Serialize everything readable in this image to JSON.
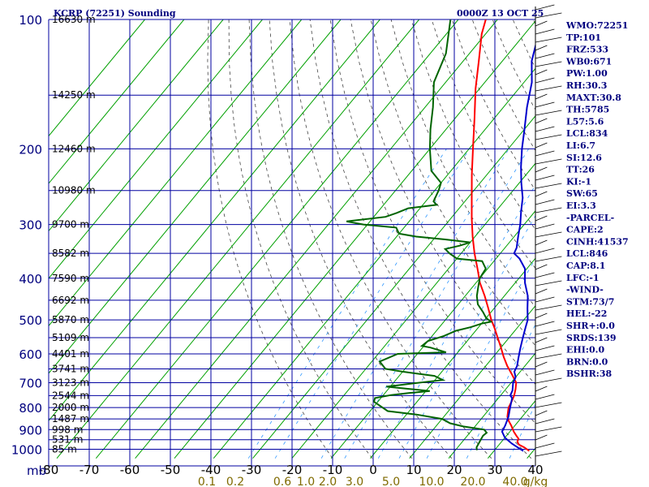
{
  "header": {
    "title": "KCRP (72251) Sounding",
    "datetime": "0000Z 13 OCT 25"
  },
  "indices": [
    "WMO:72251",
    "TP:101",
    "FRZ:533",
    "WB0:671",
    "PW:1.00",
    "RH:30.3",
    "MAXT:30.8",
    "TH:5785",
    "L57:5.6",
    "LCL:834",
    "LI:6.7",
    "SI:12.6",
    "TT:26",
    "KI:-1",
    "SW:65",
    "EI:3.3",
    "-PARCEL-",
    "CAPE:2",
    "CINH:41537",
    "LCL:846",
    "CAP:8.1",
    "LFC:-1",
    "-WIND-",
    "STM:73/7",
    "HEL:-22",
    "SHR+:0.0",
    "SRDS:139",
    "EHI:0.0",
    "BRN:0.0",
    "BSHR:38"
  ],
  "chart_data": {
    "type": "line",
    "title": "KCRP (72251) Sounding",
    "xlabel": "",
    "ylabel": "mb",
    "x_axis": {
      "label": "",
      "ticks": [
        -80,
        -70,
        -60,
        -50,
        -40,
        -30,
        -20,
        -10,
        0,
        10,
        20,
        30,
        40
      ],
      "range": [
        -80,
        40
      ]
    },
    "y_axis": {
      "label": "mb",
      "scale": "log",
      "ticks": [
        100,
        200,
        300,
        400,
        500,
        600,
        700,
        800,
        900,
        1000
      ],
      "range": [
        100,
        1050
      ]
    },
    "mixing_ratio_labels": [
      "0.1",
      "0.2",
      "0.6",
      "1.0",
      "2.0",
      "3.0",
      "5.0",
      "10.0",
      "20.0",
      "40.0",
      "g/kg"
    ],
    "heights": [
      {
        "p": 100,
        "label": "16630 m"
      },
      {
        "p": 150,
        "label": "14250 m"
      },
      {
        "p": 200,
        "label": "12460 m"
      },
      {
        "p": 250,
        "label": "10980 m"
      },
      {
        "p": 300,
        "label": "9700 m"
      },
      {
        "p": 350,
        "label": "8582 m"
      },
      {
        "p": 400,
        "label": "7590 m"
      },
      {
        "p": 450,
        "label": "6692 m"
      },
      {
        "p": 500,
        "label": "5870 m"
      },
      {
        "p": 550,
        "label": "5109 m"
      },
      {
        "p": 600,
        "label": "4401 m"
      },
      {
        "p": 650,
        "label": "3741 m"
      },
      {
        "p": 700,
        "label": "3123 m"
      },
      {
        "p": 750,
        "label": "2544 m"
      },
      {
        "p": 800,
        "label": "2000 m"
      },
      {
        "p": 850,
        "label": "1487 m"
      },
      {
        "p": 900,
        "label": "998 m"
      },
      {
        "p": 950,
        "label": "531 m"
      },
      {
        "p": 1000,
        "label": "85 m"
      }
    ],
    "series": [
      {
        "values": [
          [
            1009,
            29
          ],
          [
            990,
            27
          ],
          [
            975,
            25
          ],
          [
            960,
            24
          ],
          [
            945,
            23.7
          ],
          [
            930,
            22.5
          ],
          [
            910,
            21
          ],
          [
            880,
            19
          ],
          [
            860,
            17.5
          ],
          [
            840,
            16.2
          ],
          [
            820,
            15.4
          ],
          [
            800,
            14.6
          ],
          [
            775,
            14.1
          ],
          [
            750,
            13.5
          ],
          [
            725,
            12.5
          ],
          [
            700,
            11.3
          ],
          [
            670,
            8.5
          ],
          [
            640,
            5.5
          ],
          [
            610,
            2.7
          ],
          [
            580,
            0
          ],
          [
            550,
            -2.9
          ],
          [
            520,
            -6
          ],
          [
            500,
            -8.3
          ],
          [
            470,
            -11.5
          ],
          [
            440,
            -15
          ],
          [
            410,
            -19
          ],
          [
            380,
            -22.6
          ],
          [
            350,
            -26.6
          ],
          [
            320,
            -30.6
          ],
          [
            290,
            -34.7
          ],
          [
            260,
            -39
          ],
          [
            230,
            -43.8
          ],
          [
            200,
            -49
          ],
          [
            170,
            -55
          ],
          [
            145,
            -61
          ],
          [
            125,
            -66
          ],
          [
            108,
            -71
          ],
          [
            100,
            -73
          ]
        ]
      },
      {
        "values": [
          [
            1009,
            27.5
          ],
          [
            970,
            23
          ],
          [
            940,
            20
          ],
          [
            910,
            18
          ],
          [
            880,
            17.5
          ],
          [
            860,
            17
          ],
          [
            840,
            16.5
          ],
          [
            800,
            15
          ],
          [
            760,
            13.5
          ],
          [
            750,
            12.5
          ],
          [
            730,
            12
          ],
          [
            700,
            10.5
          ],
          [
            680,
            10
          ],
          [
            660,
            8.5
          ],
          [
            640,
            8
          ],
          [
            620,
            7
          ],
          [
            600,
            6
          ],
          [
            580,
            5
          ],
          [
            550,
            3.5
          ],
          [
            520,
            2
          ],
          [
            500,
            1
          ],
          [
            470,
            -1.5
          ],
          [
            440,
            -4
          ],
          [
            410,
            -7.5
          ],
          [
            380,
            -10.5
          ],
          [
            360,
            -14
          ],
          [
            350,
            -16.5
          ],
          [
            340,
            -17
          ],
          [
            320,
            -19
          ],
          [
            300,
            -21
          ],
          [
            280,
            -23.5
          ],
          [
            260,
            -26
          ],
          [
            240,
            -29.5
          ],
          [
            220,
            -33
          ],
          [
            200,
            -36.5
          ],
          [
            180,
            -40
          ],
          [
            160,
            -44
          ],
          [
            140,
            -48
          ],
          [
            125,
            -52.5
          ],
          [
            110,
            -56
          ],
          [
            100,
            -59
          ]
        ]
      },
      {
        "values": [
          [
            1005,
            15.5
          ],
          [
            990,
            14.8
          ],
          [
            960,
            14.4
          ],
          [
            930,
            14
          ],
          [
            915,
            14.3
          ],
          [
            900,
            13
          ],
          [
            885,
            7
          ],
          [
            870,
            3
          ],
          [
            850,
            0
          ],
          [
            830,
            -7.5
          ],
          [
            815,
            -15.5
          ],
          [
            775,
            -21
          ],
          [
            760,
            -21.5
          ],
          [
            748,
            -18
          ],
          [
            740,
            -14
          ],
          [
            732,
            -9
          ],
          [
            725,
            -14
          ],
          [
            715,
            -21
          ],
          [
            705,
            -16
          ],
          [
            690,
            -8
          ],
          [
            675,
            -11
          ],
          [
            660,
            -20
          ],
          [
            650,
            -25
          ],
          [
            625,
            -28
          ],
          [
            600,
            -25
          ],
          [
            595,
            -13
          ],
          [
            580,
            -18
          ],
          [
            575,
            -20.5
          ],
          [
            560,
            -20
          ],
          [
            545,
            -17
          ],
          [
            530,
            -15
          ],
          [
            520,
            -12
          ],
          [
            510,
            -10
          ],
          [
            505,
            -8
          ],
          [
            495,
            -10
          ],
          [
            480,
            -12
          ],
          [
            460,
            -15
          ],
          [
            440,
            -17
          ],
          [
            420,
            -18.5
          ],
          [
            400,
            -20
          ],
          [
            380,
            -20.5
          ],
          [
            365,
            -23
          ],
          [
            360,
            -30
          ],
          [
            350,
            -33
          ],
          [
            342,
            -35
          ],
          [
            336,
            -32
          ],
          [
            330,
            -30
          ],
          [
            325,
            -37
          ],
          [
            320,
            -45
          ],
          [
            315,
            -50
          ],
          [
            305,
            -52
          ],
          [
            300,
            -61
          ],
          [
            295,
            -66
          ],
          [
            288,
            -57
          ],
          [
            282,
            -55
          ],
          [
            275,
            -53
          ],
          [
            270,
            -46.5
          ],
          [
            265,
            -48
          ],
          [
            250,
            -49
          ],
          [
            240,
            -50
          ],
          [
            225,
            -55
          ],
          [
            200,
            -60
          ],
          [
            180,
            -64
          ],
          [
            160,
            -68
          ],
          [
            140,
            -73
          ],
          [
            120,
            -76
          ],
          [
            100,
            -82
          ]
        ]
      }
    ]
  }
}
